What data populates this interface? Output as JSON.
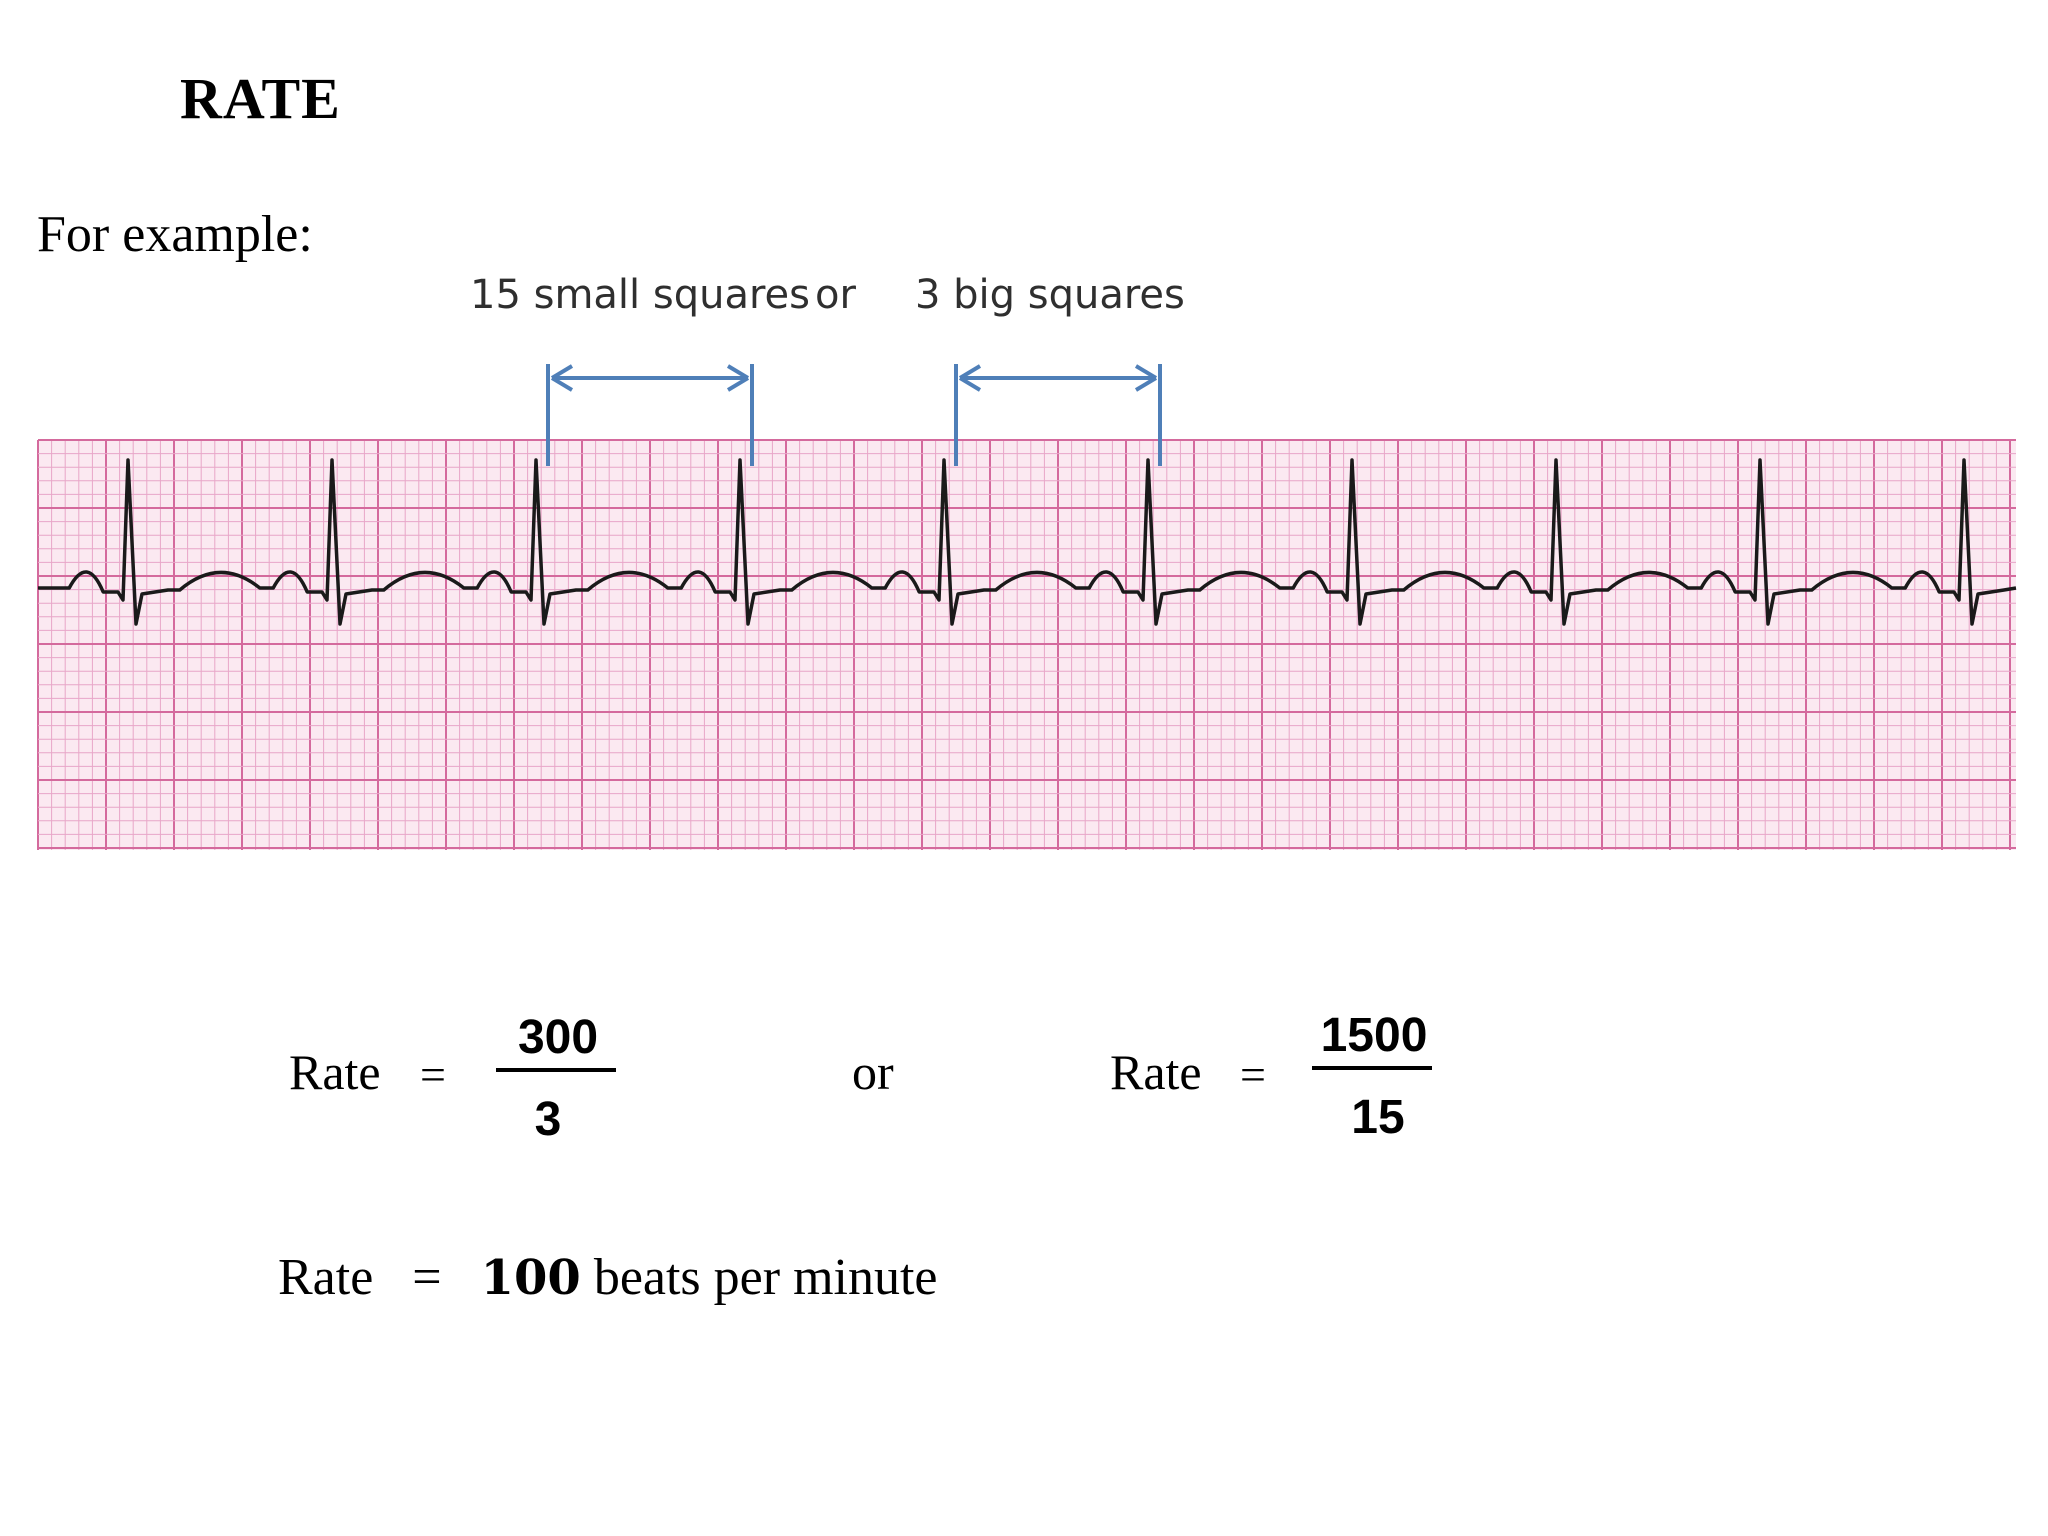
{
  "slide": {
    "title": "RATE",
    "intro": "For example:"
  },
  "annotations": {
    "small_squares": "15 small squares",
    "or": "or",
    "big_squares": "3 big squares"
  },
  "ecg_strip": {
    "grid_color_minor": "#e8a6c8",
    "grid_color_major": "#d46a9d",
    "background_color": "#fbe9f1",
    "trace_color": "#1a1a1a",
    "arrow_color": "#4f7fb8",
    "small_squares_per_big": 5,
    "rr_interval_small_squares": 15,
    "rr_interval_big_squares": 3
  },
  "equations": {
    "rate_label": "Rate",
    "equals": "=",
    "formula_1": {
      "numerator": "300",
      "denominator": "3"
    },
    "or": "or",
    "formula_2": {
      "numerator": "1500",
      "denominator": "15"
    }
  },
  "result": {
    "label": "Rate",
    "equals": "=",
    "value": "100",
    "unit": "beats per minute"
  }
}
